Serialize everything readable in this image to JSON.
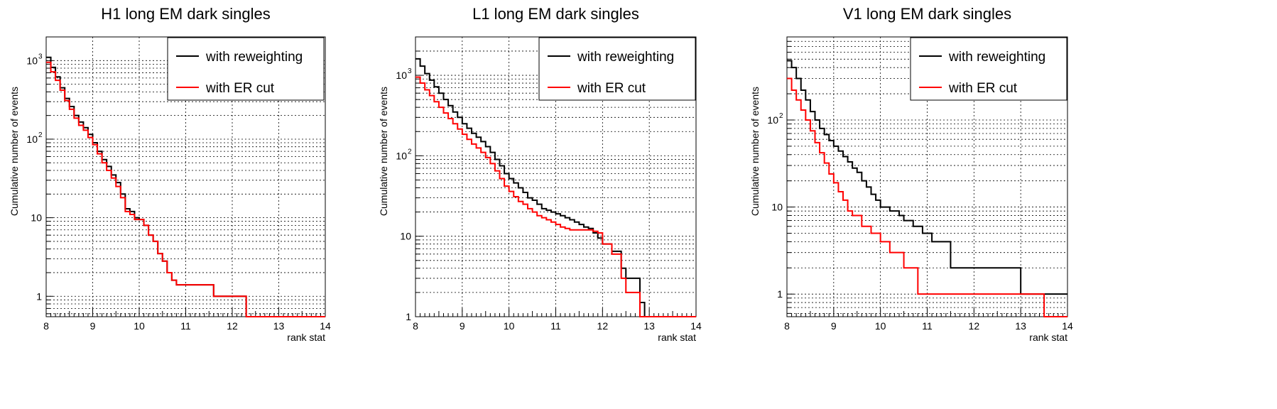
{
  "figure": {
    "panels": [
      {
        "title": "H1 long EM dark singles",
        "xlabel": "rank stat",
        "ylabel": "Cumulative number of events",
        "legend": [
          {
            "label": "with reweighting",
            "color": "#000000"
          },
          {
            "label": "with ER cut",
            "color": "#ff0000"
          }
        ]
      },
      {
        "title": "L1 long EM dark singles",
        "xlabel": "rank stat",
        "ylabel": "Cumulative number of events",
        "legend": [
          {
            "label": "with reweighting",
            "color": "#000000"
          },
          {
            "label": "with ER cut",
            "color": "#ff0000"
          }
        ]
      },
      {
        "title": "V1 long EM dark singles",
        "xlabel": "rank stat",
        "ylabel": "Cumulative number of events",
        "legend": [
          {
            "label": "with reweighting",
            "color": "#000000"
          },
          {
            "label": "with ER cut",
            "color": "#ff0000"
          }
        ]
      }
    ]
  },
  "chart_data": [
    {
      "type": "line",
      "step": true,
      "title": "H1 long EM dark singles",
      "xlabel": "rank stat",
      "ylabel": "Cumulative number of events",
      "xlim": [
        8,
        14
      ],
      "ylim": [
        0.55,
        2000
      ],
      "yscale": "log",
      "grid": true,
      "legend_position": "top-right",
      "x_ticks": [
        "8",
        "9",
        "10",
        "11",
        "12",
        "13",
        "14"
      ],
      "y_ticks": [
        {
          "value": 1,
          "label": "1",
          "sup": ""
        },
        {
          "value": 10,
          "label": "10",
          "sup": ""
        },
        {
          "value": 100,
          "label": "10",
          "sup": "2"
        },
        {
          "value": 1000,
          "label": "10",
          "sup": "3"
        }
      ],
      "series": [
        {
          "name": "with reweighting",
          "color": "#000000",
          "x": [
            8.0,
            8.1,
            8.2,
            8.3,
            8.4,
            8.5,
            8.6,
            8.7,
            8.8,
            8.9,
            9.0,
            9.1,
            9.2,
            9.3,
            9.4,
            9.5,
            9.6,
            9.7,
            9.8,
            9.9,
            10.0,
            10.1,
            10.2,
            10.3,
            10.4,
            10.5,
            10.6,
            10.7,
            10.8,
            11.6,
            12.3,
            14.0
          ],
          "y": [
            1100,
            820,
            620,
            450,
            330,
            260,
            200,
            165,
            140,
            115,
            90,
            70,
            55,
            45,
            35,
            28,
            20,
            13,
            12,
            10,
            9.5,
            8,
            6,
            5,
            3.5,
            2.8,
            2,
            1.6,
            1.4,
            1,
            0.55,
            0.55
          ]
        },
        {
          "name": "with ER cut",
          "color": "#ff0000",
          "x": [
            8.0,
            8.1,
            8.2,
            8.3,
            8.4,
            8.5,
            8.6,
            8.7,
            8.8,
            8.9,
            9.0,
            9.1,
            9.2,
            9.3,
            9.4,
            9.5,
            9.6,
            9.7,
            9.8,
            9.9,
            10.0,
            10.1,
            10.2,
            10.3,
            10.4,
            10.5,
            10.6,
            10.7,
            10.8,
            11.6,
            12.3,
            14.0
          ],
          "y": [
            950,
            720,
            560,
            420,
            310,
            240,
            185,
            150,
            130,
            105,
            85,
            65,
            50,
            40,
            32,
            25,
            18,
            12,
            11,
            9.5,
            9.5,
            8,
            6,
            5,
            3.5,
            2.8,
            2,
            1.6,
            1.4,
            1,
            0.55,
            0.55
          ]
        }
      ]
    },
    {
      "type": "line",
      "step": true,
      "title": "L1 long EM dark singles",
      "xlabel": "rank stat",
      "ylabel": "Cumulative number of events",
      "xlim": [
        8,
        14
      ],
      "ylim": [
        1,
        3000
      ],
      "yscale": "log",
      "grid": true,
      "legend_position": "top-right",
      "x_ticks": [
        "8",
        "9",
        "10",
        "11",
        "12",
        "13",
        "14"
      ],
      "y_ticks": [
        {
          "value": 1,
          "label": "1",
          "sup": ""
        },
        {
          "value": 10,
          "label": "10",
          "sup": ""
        },
        {
          "value": 100,
          "label": "10",
          "sup": "2"
        },
        {
          "value": 1000,
          "label": "10",
          "sup": "3"
        }
      ],
      "series": [
        {
          "name": "with reweighting",
          "color": "#000000",
          "x": [
            8.0,
            8.1,
            8.2,
            8.3,
            8.4,
            8.5,
            8.6,
            8.7,
            8.8,
            8.9,
            9.0,
            9.1,
            9.2,
            9.3,
            9.4,
            9.5,
            9.6,
            9.7,
            9.8,
            9.9,
            10.0,
            10.1,
            10.2,
            10.3,
            10.4,
            10.5,
            10.6,
            10.7,
            10.8,
            10.9,
            11.0,
            11.1,
            11.2,
            11.3,
            11.4,
            11.5,
            11.6,
            11.7,
            11.8,
            11.9,
            12.0,
            12.2,
            12.4,
            12.5,
            12.8,
            12.9,
            14.0
          ],
          "y": [
            1600,
            1300,
            1050,
            870,
            720,
            600,
            500,
            420,
            350,
            300,
            250,
            220,
            190,
            170,
            150,
            130,
            110,
            90,
            75,
            60,
            52,
            46,
            40,
            35,
            30,
            28,
            25,
            22,
            21,
            20,
            19,
            18,
            17,
            16,
            15,
            14,
            13,
            12.5,
            11,
            9.5,
            8,
            6.5,
            4,
            3,
            1.5,
            1,
            1
          ]
        },
        {
          "name": "with ER cut",
          "color": "#ff0000",
          "x": [
            8.0,
            8.1,
            8.2,
            8.3,
            8.4,
            8.5,
            8.6,
            8.7,
            8.8,
            8.9,
            9.0,
            9.1,
            9.2,
            9.3,
            9.4,
            9.5,
            9.6,
            9.7,
            9.8,
            9.9,
            10.0,
            10.1,
            10.2,
            10.3,
            10.4,
            10.5,
            10.6,
            10.7,
            10.8,
            10.9,
            11.0,
            11.1,
            11.2,
            11.3,
            11.4,
            11.5,
            11.6,
            11.7,
            11.8,
            11.9,
            12.0,
            12.2,
            12.4,
            12.5,
            12.8,
            12.9,
            14.0
          ],
          "y": [
            950,
            800,
            660,
            560,
            470,
            400,
            340,
            290,
            250,
            215,
            185,
            160,
            140,
            125,
            110,
            95,
            80,
            65,
            52,
            42,
            36,
            31,
            27,
            25,
            22,
            20,
            18,
            17,
            16,
            15,
            14,
            13,
            12.5,
            12,
            12,
            12,
            12,
            12,
            11.5,
            11,
            8,
            6,
            3,
            2,
            1,
            1,
            1
          ]
        }
      ]
    },
    {
      "type": "line",
      "step": true,
      "title": "V1 long EM dark singles",
      "xlabel": "rank stat",
      "ylabel": "Cumulative number of events",
      "xlim": [
        8,
        14
      ],
      "ylim": [
        0.55,
        900
      ],
      "yscale": "log",
      "grid": true,
      "legend_position": "top-right",
      "x_ticks": [
        "8",
        "9",
        "10",
        "11",
        "12",
        "13",
        "14"
      ],
      "y_ticks": [
        {
          "value": 1,
          "label": "1",
          "sup": ""
        },
        {
          "value": 10,
          "label": "10",
          "sup": ""
        },
        {
          "value": 100,
          "label": "10",
          "sup": "2"
        }
      ],
      "series": [
        {
          "name": "with reweighting",
          "color": "#000000",
          "x": [
            8.0,
            8.1,
            8.2,
            8.3,
            8.4,
            8.5,
            8.6,
            8.7,
            8.8,
            8.9,
            9.0,
            9.1,
            9.2,
            9.3,
            9.4,
            9.5,
            9.6,
            9.7,
            9.8,
            9.9,
            10.0,
            10.2,
            10.4,
            10.5,
            10.7,
            10.9,
            11.1,
            11.5,
            12.5,
            13.0,
            14.0
          ],
          "y": [
            480,
            400,
            300,
            220,
            170,
            125,
            100,
            80,
            68,
            58,
            50,
            44,
            38,
            33,
            28,
            25,
            20,
            17,
            14,
            12,
            10,
            9,
            8,
            7,
            6,
            5,
            4,
            2,
            2,
            1,
            1
          ]
        },
        {
          "name": "with ER cut",
          "color": "#ff0000",
          "x": [
            8.0,
            8.1,
            8.2,
            8.3,
            8.4,
            8.5,
            8.6,
            8.7,
            8.8,
            8.9,
            9.0,
            9.1,
            9.2,
            9.3,
            9.4,
            9.6,
            9.8,
            10.0,
            10.2,
            10.5,
            10.8,
            13.5,
            14.0
          ],
          "y": [
            300,
            220,
            170,
            130,
            100,
            75,
            55,
            42,
            32,
            24,
            19,
            15,
            12,
            9,
            8,
            6,
            5,
            4,
            3,
            2,
            1,
            0.55,
            0.55
          ]
        }
      ]
    }
  ]
}
